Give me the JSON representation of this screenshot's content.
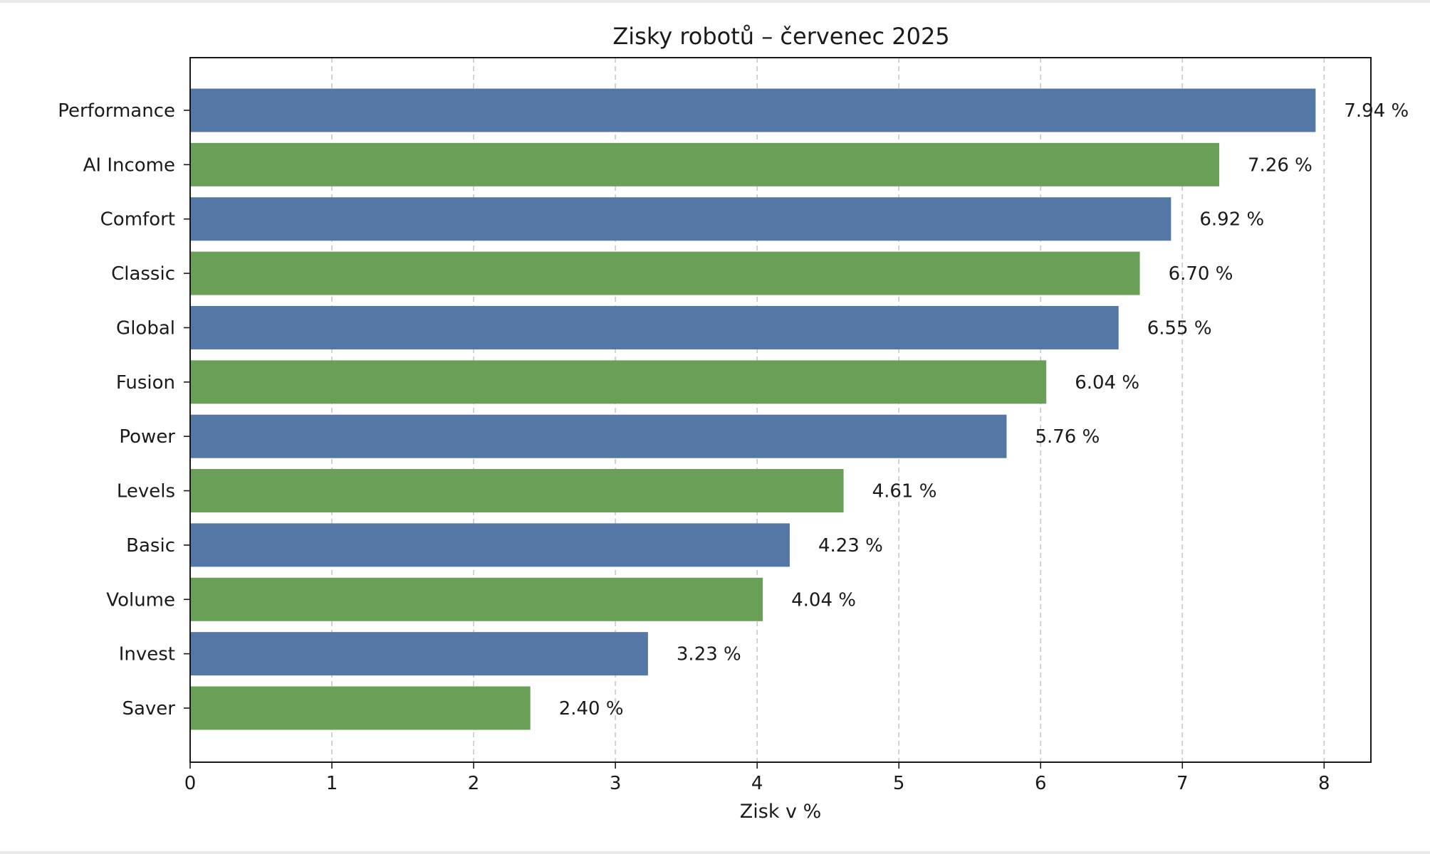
{
  "chart_data": {
    "type": "bar",
    "orientation": "horizontal",
    "title": "Zisky robotů – červenec 2025",
    "xlabel": "Zisk v %",
    "ylabel": "",
    "xlim": [
      0,
      8.33
    ],
    "x_ticks": [
      0,
      1,
      2,
      3,
      4,
      5,
      6,
      7,
      8
    ],
    "grid": "x-dashed",
    "categories": [
      "Performance",
      "AI Income",
      "Comfort",
      "Classic",
      "Global",
      "Fusion",
      "Power",
      "Levels",
      "Basic",
      "Volume",
      "Invest",
      "Saver"
    ],
    "values": [
      7.94,
      7.26,
      6.92,
      6.7,
      6.55,
      6.04,
      5.76,
      4.61,
      4.23,
      4.04,
      3.23,
      2.4
    ],
    "value_labels": [
      "7.94 %",
      "7.26 %",
      "6.92 %",
      "6.70 %",
      "6.55 %",
      "6.04 %",
      "5.76 %",
      "4.61 %",
      "4.23 %",
      "4.04 %",
      "3.23 %",
      "2.40 %"
    ],
    "colors": [
      "#5577a5",
      "#6a9f58"
    ]
  }
}
